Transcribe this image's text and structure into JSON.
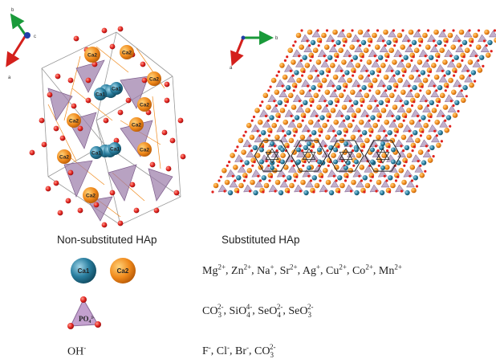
{
  "left_structure": {
    "axes": [
      "b",
      "c",
      "a"
    ],
    "atom_labels": [
      "Ca2",
      "Ca2",
      "Ca2",
      "Ca1",
      "Ca1",
      "Ca2",
      "Ca2",
      "Ca2",
      "Ca1",
      "Ca1",
      "Ca2",
      "Ca2",
      "Ca2"
    ],
    "caption": "Non-substituted HAp"
  },
  "right_structure": {
    "axes": [
      "b",
      "a"
    ],
    "caption": "Substituted HAp"
  },
  "legend": {
    "ca1_label": "Ca1",
    "ca2_label": "Ca2",
    "po4_label": "PO₄",
    "po4_charge": "3-",
    "oh_label": "OH",
    "oh_charge": "-"
  },
  "substitutions": {
    "cations": [
      {
        "ion": "Mg",
        "charge": "2+"
      },
      {
        "ion": "Zn",
        "charge": "2+"
      },
      {
        "ion": "Na",
        "charge": "+"
      },
      {
        "ion": "Sr",
        "charge": "2+"
      },
      {
        "ion": "Ag",
        "charge": "+"
      },
      {
        "ion": "Cu",
        "charge": "2+"
      },
      {
        "ion": "Co",
        "charge": "2+"
      },
      {
        "ion": "Mn",
        "charge": "2+"
      }
    ],
    "oxyanions": [
      {
        "base": "CO",
        "sub": "3",
        "charge": "2-"
      },
      {
        "base": "SiO",
        "sub": "4",
        "charge": "4-"
      },
      {
        "base": "SeO",
        "sub": "4",
        "charge": "2-"
      },
      {
        "base": "SeO",
        "sub": "3",
        "charge": "2-"
      }
    ],
    "anions": [
      {
        "base": "F",
        "sub": "",
        "charge": "-"
      },
      {
        "base": "Cl",
        "sub": "",
        "charge": "-"
      },
      {
        "base": "Br",
        "sub": "",
        "charge": "-"
      },
      {
        "base": "CO",
        "sub": "3",
        "charge": "2-"
      }
    ]
  },
  "colors": {
    "ca1": "#2a7fa0",
    "ca2": "#f08a1c",
    "oxygen": "#e0201c",
    "polyhedron": "#9a7aa8",
    "axis_b": "#1a9a3a",
    "axis_a": "#d4201c",
    "axis_c": "#1f3fa8"
  }
}
